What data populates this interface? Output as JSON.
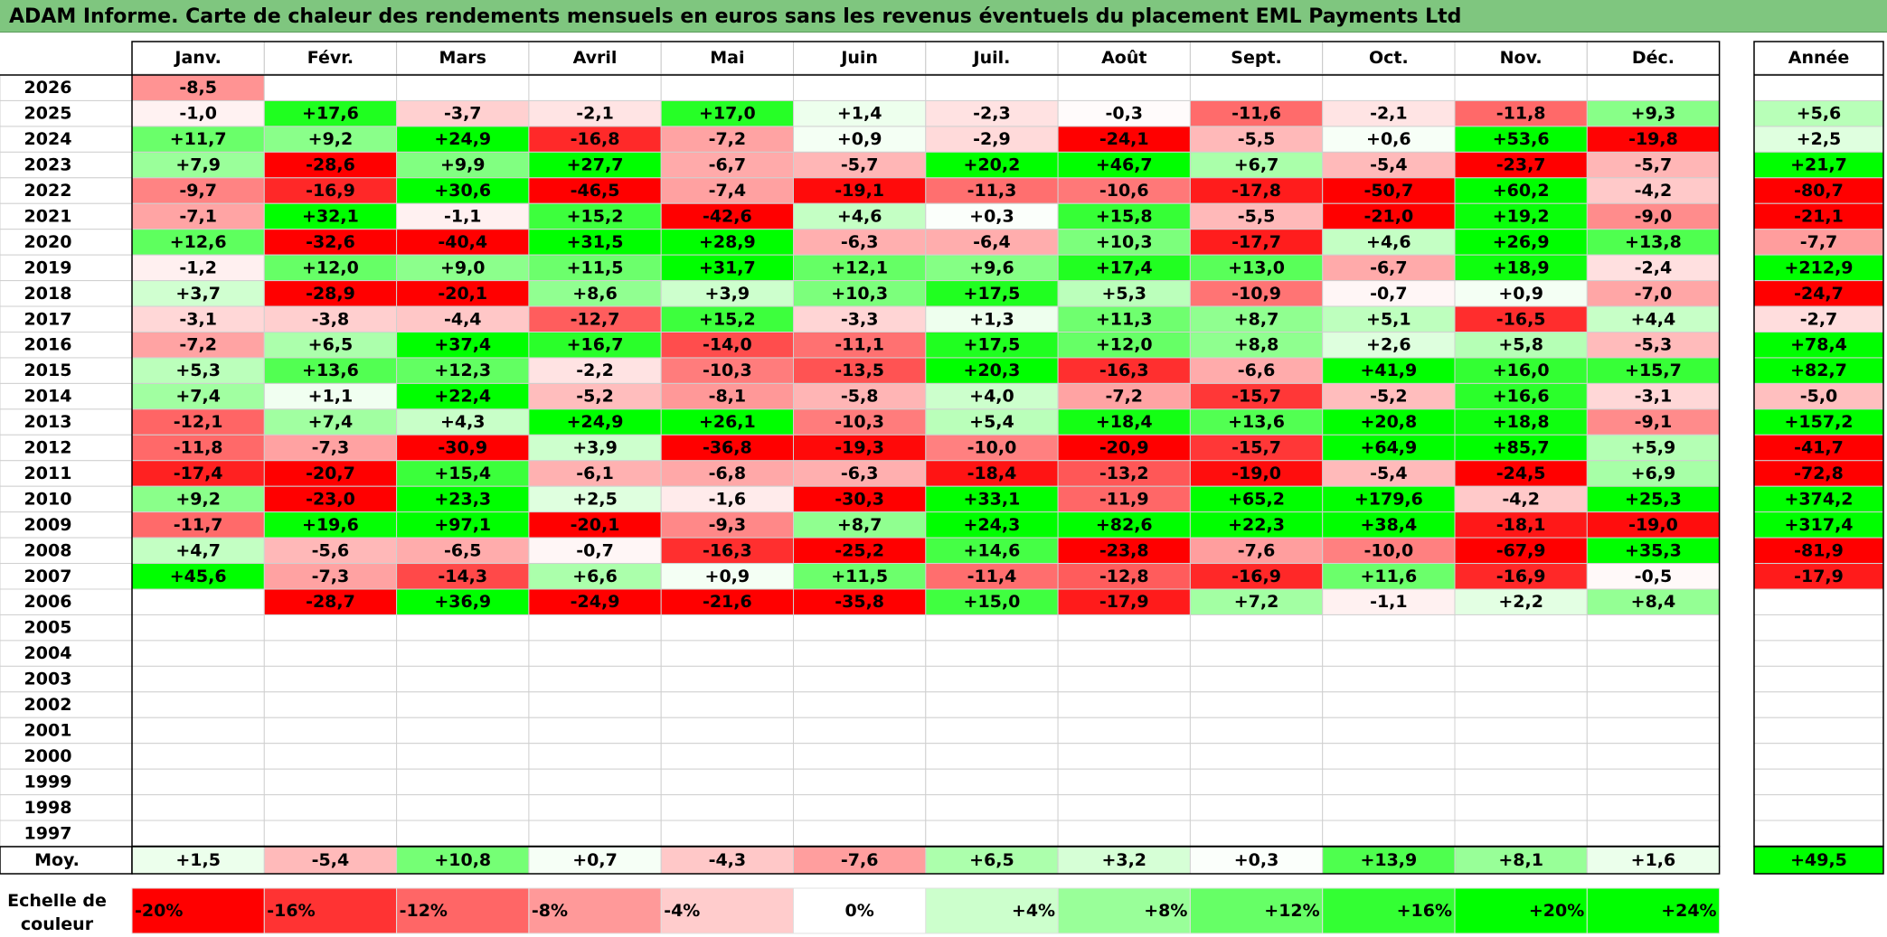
{
  "title": "ADAM Informe. Carte de chaleur des rendements mensuels en euros sans les revenus éventuels du placement EML Payments Ltd",
  "chart_data": {
    "type": "heatmap",
    "columns": [
      "Janv.",
      "Févr.",
      "Mars",
      "Avril",
      "Mai",
      "Juin",
      "Juil.",
      "Août",
      "Sept.",
      "Oct.",
      "Nov.",
      "Déc."
    ],
    "year_column": "Année",
    "rows": [
      {
        "year": "2026",
        "months": [
          "-8,5",
          "",
          "",
          "",
          "",
          "",
          "",
          "",
          "",
          "",
          "",
          ""
        ],
        "annual": ""
      },
      {
        "year": "2025",
        "months": [
          "-1,0",
          "+17,6",
          "-3,7",
          "-2,1",
          "+17,0",
          "+1,4",
          "-2,3",
          "-0,3",
          "-11,6",
          "-2,1",
          "-11,8",
          "+9,3"
        ],
        "annual": "+5,6"
      },
      {
        "year": "2024",
        "months": [
          "+11,7",
          "+9,2",
          "+24,9",
          "-16,8",
          "-7,2",
          "+0,9",
          "-2,9",
          "-24,1",
          "-5,5",
          "+0,6",
          "+53,6",
          "-19,8"
        ],
        "annual": "+2,5"
      },
      {
        "year": "2023",
        "months": [
          "+7,9",
          "-28,6",
          "+9,9",
          "+27,7",
          "-6,7",
          "-5,7",
          "+20,2",
          "+46,7",
          "+6,7",
          "-5,4",
          "-23,7",
          "-5,7"
        ],
        "annual": "+21,7"
      },
      {
        "year": "2022",
        "months": [
          "-9,7",
          "-16,9",
          "+30,6",
          "-46,5",
          "-7,4",
          "-19,1",
          "-11,3",
          "-10,6",
          "-17,8",
          "-50,7",
          "+60,2",
          "-4,2"
        ],
        "annual": "-80,7"
      },
      {
        "year": "2021",
        "months": [
          "-7,1",
          "+32,1",
          "-1,1",
          "+15,2",
          "-42,6",
          "+4,6",
          "+0,3",
          "+15,8",
          "-5,5",
          "-21,0",
          "+19,2",
          "-9,0"
        ],
        "annual": "-21,1"
      },
      {
        "year": "2020",
        "months": [
          "+12,6",
          "-32,6",
          "-40,4",
          "+31,5",
          "+28,9",
          "-6,3",
          "-6,4",
          "+10,3",
          "-17,7",
          "+4,6",
          "+26,9",
          "+13,8"
        ],
        "annual": "-7,7"
      },
      {
        "year": "2019",
        "months": [
          "-1,2",
          "+12,0",
          "+9,0",
          "+11,5",
          "+31,7",
          "+12,1",
          "+9,6",
          "+17,4",
          "+13,0",
          "-6,7",
          "+18,9",
          "-2,4"
        ],
        "annual": "+212,9"
      },
      {
        "year": "2018",
        "months": [
          "+3,7",
          "-28,9",
          "-20,1",
          "+8,6",
          "+3,9",
          "+10,3",
          "+17,5",
          "+5,3",
          "-10,9",
          "-0,7",
          "+0,9",
          "-7,0"
        ],
        "annual": "-24,7"
      },
      {
        "year": "2017",
        "months": [
          "-3,1",
          "-3,8",
          "-4,4",
          "-12,7",
          "+15,2",
          "-3,3",
          "+1,3",
          "+11,3",
          "+8,7",
          "+5,1",
          "-16,5",
          "+4,4"
        ],
        "annual": "-2,7"
      },
      {
        "year": "2016",
        "months": [
          "-7,2",
          "+6,5",
          "+37,4",
          "+16,7",
          "-14,0",
          "-11,1",
          "+17,5",
          "+12,0",
          "+8,8",
          "+2,6",
          "+5,8",
          "-5,3"
        ],
        "annual": "+78,4"
      },
      {
        "year": "2015",
        "months": [
          "+5,3",
          "+13,6",
          "+12,3",
          "-2,2",
          "-10,3",
          "-13,5",
          "+20,3",
          "-16,3",
          "-6,6",
          "+41,9",
          "+16,0",
          "+15,7"
        ],
        "annual": "+82,7"
      },
      {
        "year": "2014",
        "months": [
          "+7,4",
          "+1,1",
          "+22,4",
          "-5,2",
          "-8,1",
          "-5,8",
          "+4,0",
          "-7,2",
          "-15,7",
          "-5,2",
          "+16,6",
          "-3,1"
        ],
        "annual": "-5,0"
      },
      {
        "year": "2013",
        "months": [
          "-12,1",
          "+7,4",
          "+4,3",
          "+24,9",
          "+26,1",
          "-10,3",
          "+5,4",
          "+18,4",
          "+13,6",
          "+20,8",
          "+18,8",
          "-9,1"
        ],
        "annual": "+157,2"
      },
      {
        "year": "2012",
        "months": [
          "-11,8",
          "-7,3",
          "-30,9",
          "+3,9",
          "-36,8",
          "-19,3",
          "-10,0",
          "-20,9",
          "-15,7",
          "+64,9",
          "+85,7",
          "+5,9"
        ],
        "annual": "-41,7"
      },
      {
        "year": "2011",
        "months": [
          "-17,4",
          "-20,7",
          "+15,4",
          "-6,1",
          "-6,8",
          "-6,3",
          "-18,4",
          "-13,2",
          "-19,0",
          "-5,4",
          "-24,5",
          "+6,9"
        ],
        "annual": "-72,8"
      },
      {
        "year": "2010",
        "months": [
          "+9,2",
          "-23,0",
          "+23,3",
          "+2,5",
          "-1,6",
          "-30,3",
          "+33,1",
          "-11,9",
          "+65,2",
          "+179,6",
          "-4,2",
          "+25,3"
        ],
        "annual": "+374,2"
      },
      {
        "year": "2009",
        "months": [
          "-11,7",
          "+19,6",
          "+97,1",
          "-20,1",
          "-9,3",
          "+8,7",
          "+24,3",
          "+82,6",
          "+22,3",
          "+38,4",
          "-18,1",
          "-19,0"
        ],
        "annual": "+317,4"
      },
      {
        "year": "2008",
        "months": [
          "+4,7",
          "-5,6",
          "-6,5",
          "-0,7",
          "-16,3",
          "-25,2",
          "+14,6",
          "-23,8",
          "-7,6",
          "-10,0",
          "-67,9",
          "+35,3"
        ],
        "annual": "-81,9"
      },
      {
        "year": "2007",
        "months": [
          "+45,6",
          "-7,3",
          "-14,3",
          "+6,6",
          "+0,9",
          "+11,5",
          "-11,4",
          "-12,8",
          "-16,9",
          "+11,6",
          "-16,9",
          "-0,5"
        ],
        "annual": "-17,9"
      },
      {
        "year": "2006",
        "months": [
          "",
          "-28,7",
          "+36,9",
          "-24,9",
          "-21,6",
          "-35,8",
          "+15,0",
          "-17,9",
          "+7,2",
          "-1,1",
          "+2,2",
          "+8,4"
        ],
        "annual": ""
      },
      {
        "year": "2005",
        "months": [
          "",
          "",
          "",
          "",
          "",
          "",
          "",
          "",
          "",
          "",
          "",
          ""
        ],
        "annual": ""
      },
      {
        "year": "2004",
        "months": [
          "",
          "",
          "",
          "",
          "",
          "",
          "",
          "",
          "",
          "",
          "",
          ""
        ],
        "annual": ""
      },
      {
        "year": "2003",
        "months": [
          "",
          "",
          "",
          "",
          "",
          "",
          "",
          "",
          "",
          "",
          "",
          ""
        ],
        "annual": ""
      },
      {
        "year": "2002",
        "months": [
          "",
          "",
          "",
          "",
          "",
          "",
          "",
          "",
          "",
          "",
          "",
          ""
        ],
        "annual": ""
      },
      {
        "year": "2001",
        "months": [
          "",
          "",
          "",
          "",
          "",
          "",
          "",
          "",
          "",
          "",
          "",
          ""
        ],
        "annual": ""
      },
      {
        "year": "2000",
        "months": [
          "",
          "",
          "",
          "",
          "",
          "",
          "",
          "",
          "",
          "",
          "",
          ""
        ],
        "annual": ""
      },
      {
        "year": "1999",
        "months": [
          "",
          "",
          "",
          "",
          "",
          "",
          "",
          "",
          "",
          "",
          "",
          ""
        ],
        "annual": ""
      },
      {
        "year": "1998",
        "months": [
          "",
          "",
          "",
          "",
          "",
          "",
          "",
          "",
          "",
          "",
          "",
          ""
        ],
        "annual": ""
      },
      {
        "year": "1997",
        "months": [
          "",
          "",
          "",
          "",
          "",
          "",
          "",
          "",
          "",
          "",
          "",
          ""
        ],
        "annual": ""
      }
    ],
    "average_row": {
      "label": "Moy.",
      "months": [
        "+1,5",
        "-5,4",
        "+10,8",
        "+0,7",
        "-4,3",
        "-7,6",
        "+6,5",
        "+3,2",
        "+0,3",
        "+13,9",
        "+8,1",
        "+1,6"
      ],
      "annual": "+49,5"
    },
    "color_scale": {
      "label_line1": "Echelle de",
      "label_line2": "couleur",
      "steps": [
        "-20%",
        "-16%",
        "-12%",
        "-8%",
        "-4%",
        "0%",
        "+4%",
        "+8%",
        "+12%",
        "+16%",
        "+20%",
        "+24%"
      ],
      "colors": [
        "#ff0000",
        "#ff3333",
        "#ff6666",
        "#ff9999",
        "#ffcccc",
        "#ffffff",
        "#ccffcc",
        "#99ff99",
        "#66ff66",
        "#33ff33",
        "#00ff00",
        "#00ff00"
      ]
    }
  }
}
